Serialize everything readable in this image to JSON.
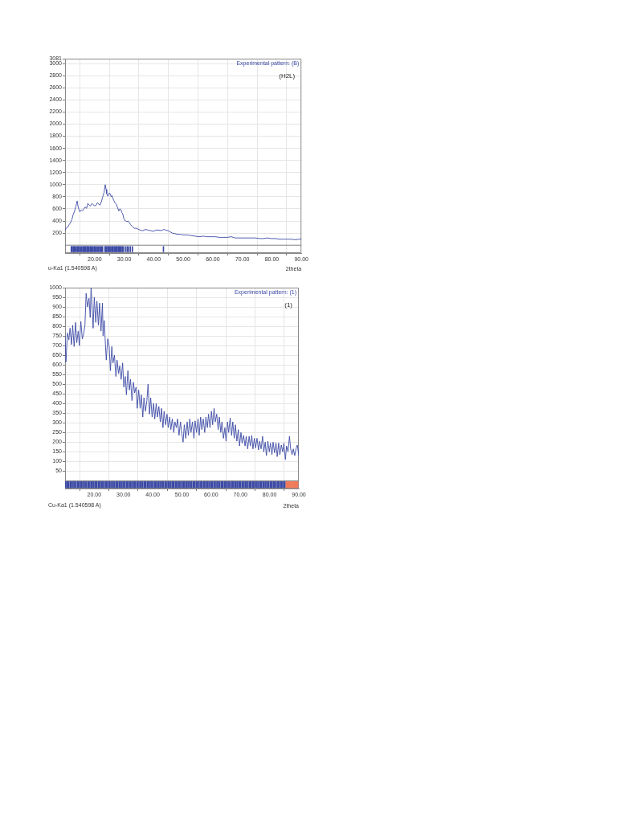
{
  "chart_data": [
    {
      "type": "line",
      "xlabel": "2theta",
      "annotations": [
        "(H2L)",
        "u-Ka1 (1.540598 A)"
      ],
      "xlim": [
        10,
        90
      ],
      "xticks": [
        {
          "value": 20,
          "label": "20.00"
        },
        {
          "value": 30,
          "label": "30.00"
        },
        {
          "value": 40,
          "label": "40.00"
        },
        {
          "value": 50,
          "label": "50.00"
        },
        {
          "value": 60,
          "label": "60.00"
        },
        {
          "value": 70,
          "label": "70.00"
        },
        {
          "value": 80,
          "label": "80.00"
        },
        {
          "value": 90,
          "label": "90.00"
        }
      ],
      "ylim": [
        -130,
        3081
      ],
      "yticks": [
        200,
        400,
        600,
        800,
        1000,
        1200,
        1400,
        1600,
        1800,
        2000,
        2200,
        2400,
        2600,
        2800,
        3000,
        3081
      ],
      "grid": true,
      "legend": "top right",
      "ref_lines": [
        {
          "axis": "y",
          "value": 0,
          "color": "#808080"
        }
      ],
      "series": [
        {
          "name": "Experimental pattern: (B)",
          "color": "#3c4aa5",
          "x": [
            10.0,
            10.5,
            10.9,
            11.4,
            11.8,
            12.3,
            12.7,
            13.2,
            13.7,
            14.1,
            14.4,
            14.7,
            15.0,
            15.5,
            15.9,
            16.4,
            16.8,
            17.3,
            17.7,
            18.2,
            18.6,
            19.1,
            19.5,
            20.0,
            20.5,
            20.9,
            21.4,
            21.8,
            22.3,
            22.7,
            23.2,
            23.6,
            23.9,
            24.1,
            24.5,
            24.9,
            25.3,
            25.6,
            25.9,
            26.2,
            26.5,
            26.9,
            27.3,
            27.7,
            28.0,
            28.2,
            28.6,
            28.9,
            29.2,
            29.5,
            29.9,
            30.2,
            30.6,
            30.9,
            31.3,
            31.8,
            32.2,
            32.5,
            33.0,
            33.4,
            34.0,
            34.5,
            35.4,
            36.3,
            37.2,
            38.1,
            39.0,
            39.9,
            40.8,
            41.8,
            42.6,
            43.3,
            44.1,
            44.9,
            45.6,
            46.3,
            47.2,
            48.1,
            49.0,
            49.9,
            51.2,
            52.6,
            54.0,
            55.4,
            56.8,
            58.1,
            59.5,
            60.8,
            62.2,
            63.5,
            64.9,
            66.2,
            67.6,
            69.0,
            70.3,
            71.7,
            73.0,
            74.4,
            75.8,
            77.1,
            78.5,
            79.8,
            81.2,
            82.6,
            83.9,
            85.3,
            86.6,
            88.0,
            89.0,
            90.0
          ],
          "values": [
            250,
            290,
            300,
            340,
            370,
            420,
            500,
            560,
            650,
            730,
            640,
            590,
            550,
            580,
            570,
            600,
            630,
            610,
            690,
            660,
            650,
            690,
            670,
            650,
            660,
            700,
            680,
            660,
            720,
            790,
            870,
            1000,
            920,
            850,
            810,
            860,
            850,
            800,
            820,
            770,
            740,
            700,
            680,
            630,
            590,
            570,
            600,
            590,
            540,
            520,
            440,
            410,
            400,
            390,
            400,
            370,
            340,
            320,
            300,
            280,
            280,
            270,
            250,
            240,
            260,
            250,
            240,
            230,
            250,
            250,
            240,
            260,
            250,
            240,
            220,
            200,
            190,
            180,
            180,
            170,
            170,
            160,
            150,
            140,
            150,
            140,
            140,
            140,
            130,
            130,
            130,
            140,
            120,
            120,
            120,
            120,
            120,
            120,
            110,
            110,
            120,
            110,
            110,
            100,
            100,
            100,
            100,
            90,
            100,
            100
          ]
        },
        {
          "type": "bar",
          "color": "#3c4aa5",
          "x": [
            12.1,
            12.4,
            12.8,
            13.1,
            13.5,
            13.8,
            14.2,
            14.5,
            14.9,
            15.2,
            15.6,
            16.0,
            16.3,
            16.7,
            17.0,
            17.4,
            17.7,
            18.1,
            18.5,
            18.8,
            19.2,
            19.5,
            19.9,
            20.2,
            20.6,
            20.9,
            21.3,
            21.7,
            22.0,
            22.4,
            22.7,
            23.5,
            23.8,
            24.1,
            24.5,
            24.8,
            25.2,
            25.5,
            25.9,
            26.2,
            26.6,
            26.9,
            27.3,
            27.6,
            28.0,
            28.3,
            28.7,
            29.0,
            29.4,
            29.7,
            30.4,
            31.0,
            31.5,
            32.1,
            32.8,
            43.3
          ],
          "base": [
            -110,
            -110,
            -110,
            -110,
            -110,
            -110,
            -110,
            -110,
            -110,
            -110,
            -110,
            -110,
            -110,
            -110,
            -110,
            -110,
            -110,
            -110,
            -110,
            -110,
            -110,
            -110,
            -110,
            -110,
            -110,
            -110,
            -110,
            -110,
            -110,
            -110,
            -110,
            -110,
            -110,
            -110,
            -110,
            -110,
            -110,
            -110,
            -110,
            -110,
            -110,
            -110,
            -110,
            -110,
            -110,
            -110,
            -110,
            -110,
            -110,
            -110,
            -110,
            -110,
            -110,
            -110,
            -110,
            -110
          ],
          "values": [
            90,
            90,
            90,
            90,
            90,
            90,
            90,
            90,
            90,
            90,
            90,
            90,
            90,
            90,
            90,
            90,
            90,
            90,
            90,
            90,
            90,
            90,
            90,
            90,
            90,
            90,
            90,
            90,
            90,
            90,
            90,
            90,
            90,
            90,
            90,
            90,
            90,
            90,
            90,
            90,
            90,
            90,
            90,
            90,
            90,
            90,
            90,
            90,
            90,
            90,
            90,
            90,
            90,
            90,
            90,
            90
          ]
        }
      ]
    },
    {
      "type": "line",
      "xlabel": "2theta",
      "annotations": [
        "(1)",
        "Cu-Ka1 (1.540598 A)"
      ],
      "xlim": [
        10,
        90
      ],
      "xticks": [
        {
          "value": 20,
          "label": "20.00"
        },
        {
          "value": 30,
          "label": "30.00"
        },
        {
          "value": 40,
          "label": "40.00"
        },
        {
          "value": 50,
          "label": "50.00"
        },
        {
          "value": 60,
          "label": "60.00"
        },
        {
          "value": 70,
          "label": "70.00"
        },
        {
          "value": 80,
          "label": "80.00"
        },
        {
          "value": 90,
          "label": "90.00"
        }
      ],
      "ylim": [
        -40,
        1000
      ],
      "yticks": [
        50,
        100,
        150,
        200,
        250,
        300,
        350,
        400,
        450,
        500,
        550,
        600,
        650,
        700,
        750,
        800,
        850,
        900,
        950,
        1000
      ],
      "grid": true,
      "legend": "top right",
      "ref_lines": [
        {
          "axis": "y",
          "value": 0,
          "color": "#808080"
        }
      ],
      "series": [
        {
          "name": "Experimental pattern: (1)",
          "color": "#3c4aa5",
          "x": [
            10.0,
            10.3,
            10.8,
            11.3,
            11.7,
            12.2,
            12.6,
            13.1,
            13.6,
            14.0,
            14.5,
            14.9,
            15.4,
            15.9,
            16.3,
            16.8,
            17.2,
            17.7,
            18.2,
            18.6,
            18.9,
            19.3,
            19.6,
            20.0,
            20.5,
            20.9,
            21.4,
            21.8,
            22.3,
            22.8,
            23.0,
            23.4,
            23.7,
            24.1,
            24.6,
            25.1,
            25.5,
            26.0,
            26.4,
            26.9,
            27.4,
            27.8,
            28.3,
            28.7,
            29.2,
            29.7,
            30.1,
            30.6,
            31.0,
            31.5,
            32.0,
            32.4,
            32.9,
            33.4,
            33.8,
            34.3,
            34.7,
            35.2,
            35.7,
            36.1,
            36.6,
            37.0,
            37.5,
            38.0,
            38.4,
            38.9,
            39.3,
            39.8,
            40.3,
            40.7,
            41.2,
            41.6,
            42.1,
            42.6,
            43.0,
            43.5,
            43.9,
            44.4,
            44.9,
            45.3,
            45.8,
            46.2,
            46.7,
            47.2,
            47.6,
            48.1,
            48.5,
            49.0,
            49.5,
            49.9,
            50.4,
            50.8,
            51.3,
            51.8,
            52.2,
            52.7,
            53.1,
            53.6,
            54.1,
            54.5,
            55.0,
            55.5,
            55.9,
            56.4,
            56.8,
            57.3,
            57.8,
            58.2,
            58.7,
            59.1,
            59.6,
            60.1,
            60.5,
            61.0,
            61.4,
            61.9,
            62.4,
            62.8,
            63.3,
            63.7,
            64.2,
            64.7,
            65.1,
            65.6,
            66.0,
            66.5,
            67.0,
            67.4,
            67.9,
            68.3,
            68.8,
            69.3,
            69.7,
            70.2,
            70.6,
            71.1,
            71.6,
            72.0,
            72.5,
            73.0,
            73.4,
            73.9,
            74.3,
            74.8,
            75.2,
            75.7,
            76.2,
            76.6,
            77.1,
            77.6,
            78.0,
            78.5,
            78.9,
            79.4,
            79.9,
            80.3,
            80.8,
            81.2,
            81.7,
            82.2,
            82.6,
            83.1,
            83.5,
            84.0,
            84.5,
            84.9,
            85.4,
            85.8,
            86.3,
            86.8,
            87.2,
            87.7,
            88.1,
            88.6,
            89.1,
            89.5,
            90.0
          ],
          "values": [
            750,
            615,
            765,
            730,
            790,
            705,
            805,
            695,
            820,
            715,
            775,
            700,
            825,
            735,
            755,
            805,
            970,
            900,
            945,
            845,
            1000,
            890,
            790,
            950,
            820,
            930,
            805,
            920,
            775,
            920,
            750,
            830,
            740,
            625,
            735,
            695,
            570,
            695,
            610,
            650,
            540,
            625,
            555,
            595,
            525,
            610,
            485,
            540,
            445,
            570,
            470,
            525,
            415,
            510,
            455,
            485,
            375,
            470,
            375,
            445,
            330,
            430,
            360,
            415,
            500,
            345,
            430,
            330,
            400,
            320,
            400,
            330,
            385,
            305,
            375,
            275,
            360,
            290,
            345,
            275,
            330,
            265,
            320,
            250,
            305,
            275,
            320,
            235,
            305,
            250,
            200,
            290,
            220,
            305,
            235,
            320,
            250,
            305,
            220,
            310,
            250,
            320,
            235,
            330,
            265,
            320,
            250,
            330,
            275,
            345,
            275,
            360,
            290,
            375,
            305,
            345,
            265,
            330,
            250,
            305,
            220,
            275,
            205,
            305,
            250,
            325,
            235,
            305,
            220,
            290,
            205,
            265,
            180,
            250,
            195,
            235,
            180,
            230,
            165,
            230,
            180,
            235,
            165,
            220,
            170,
            220,
            160,
            205,
            165,
            230,
            150,
            200,
            130,
            205,
            150,
            195,
            135,
            200,
            145,
            195,
            125,
            195,
            135,
            185,
            150,
            195,
            110,
            180,
            150,
            230,
            165,
            135,
            165,
            130,
            170,
            185,
            130
          ]
        },
        {
          "type": "bar",
          "x": [
            10.2,
            10.6,
            10.9,
            11.3,
            11.8,
            12.1,
            12.5,
            13.0,
            13.3,
            13.7,
            14.2,
            14.5,
            14.9,
            15.4,
            15.7,
            16.1,
            16.6,
            16.9,
            17.3,
            17.8,
            18.1,
            18.5,
            19.0,
            19.3,
            19.7,
            20.2,
            20.5,
            20.9,
            21.4,
            21.7,
            22.1,
            22.6,
            22.9,
            23.3,
            23.8,
            24.1,
            24.5,
            25.0,
            25.3,
            25.7,
            26.2,
            26.5,
            26.9,
            27.4,
            27.7,
            28.1,
            28.6,
            28.9,
            29.3,
            29.8,
            30.1,
            30.5,
            31.0,
            31.3,
            31.7,
            32.2,
            32.5,
            32.9,
            33.4,
            33.7,
            34.1,
            34.6,
            34.9,
            35.3,
            35.8,
            36.1,
            36.5,
            37.0,
            37.3,
            37.7,
            38.2,
            38.5,
            38.9,
            39.4,
            39.7,
            40.1,
            40.6,
            40.9,
            41.3,
            41.8,
            42.1,
            42.5,
            43.0,
            43.3,
            43.7,
            44.2,
            44.5,
            44.9,
            45.4,
            45.7,
            46.1,
            46.6,
            46.9,
            47.3,
            47.8,
            48.1,
            48.5,
            49.0,
            49.3,
            49.7,
            50.2,
            50.5,
            50.9,
            51.4,
            51.7,
            52.1,
            52.6,
            52.9,
            53.3,
            53.8,
            54.1,
            54.5,
            55.0,
            55.3,
            55.7,
            56.2,
            56.5,
            56.9,
            57.4,
            57.7,
            58.1,
            58.6,
            58.9,
            59.3,
            59.8,
            60.1,
            60.5,
            61.0,
            61.3,
            61.7,
            62.2,
            62.5,
            62.9,
            63.4,
            63.7,
            64.1,
            64.6,
            64.9,
            65.3,
            65.8,
            66.1,
            66.5,
            67.0,
            67.3,
            67.7,
            68.2,
            68.5,
            68.9,
            69.4,
            69.7,
            70.1,
            70.6,
            70.9,
            71.3,
            71.8,
            72.1,
            72.5,
            73.0,
            73.3,
            73.7,
            74.2,
            74.5,
            74.9,
            75.4,
            75.7,
            76.1,
            76.6,
            76.9,
            77.3,
            77.8,
            78.1,
            78.5,
            79.0,
            79.3,
            79.7,
            80.2,
            80.5,
            80.9,
            81.4,
            81.7,
            82.1,
            82.6,
            82.9,
            83.3,
            83.8,
            84.1,
            84.5,
            85.0,
            85.3,
            85.7,
            86.0,
            86.3,
            86.6,
            86.9,
            87.2,
            87.5,
            87.8,
            88.1,
            88.4,
            88.7,
            89.0,
            89.3,
            89.6
          ],
          "colors": [
            "#3c4aa5",
            "#3c4aa5",
            "#3c4aa5",
            "#3c4aa5",
            "#3c4aa5",
            "#3c4aa5",
            "#3c4aa5",
            "#3c4aa5",
            "#3c4aa5",
            "#3c4aa5",
            "#3c4aa5",
            "#3c4aa5",
            "#3c4aa5",
            "#3c4aa5",
            "#3c4aa5",
            "#3c4aa5",
            "#3c4aa5",
            "#3c4aa5",
            "#3c4aa5",
            "#3c4aa5",
            "#3c4aa5",
            "#3c4aa5",
            "#3c4aa5",
            "#3c4aa5",
            "#3c4aa5",
            "#3c4aa5",
            "#3c4aa5",
            "#3c4aa5",
            "#3c4aa5",
            "#3c4aa5",
            "#3c4aa5",
            "#3c4aa5",
            "#3c4aa5",
            "#3c4aa5",
            "#3c4aa5",
            "#3c4aa5",
            "#3c4aa5",
            "#3c4aa5",
            "#3c4aa5",
            "#3c4aa5",
            "#3c4aa5",
            "#3c4aa5",
            "#3c4aa5",
            "#3c4aa5",
            "#3c4aa5",
            "#3c4aa5",
            "#3c4aa5",
            "#3c4aa5",
            "#3c4aa5",
            "#3c4aa5",
            "#3c4aa5",
            "#3c4aa5",
            "#3c4aa5",
            "#3c4aa5",
            "#3c4aa5",
            "#3c4aa5",
            "#3c4aa5",
            "#3c4aa5",
            "#3c4aa5",
            "#3c4aa5",
            "#3c4aa5",
            "#3c4aa5",
            "#3c4aa5",
            "#3c4aa5",
            "#3c4aa5",
            "#3c4aa5",
            "#3c4aa5",
            "#3c4aa5",
            "#3c4aa5",
            "#3c4aa5",
            "#3c4aa5",
            "#3c4aa5",
            "#3c4aa5",
            "#3c4aa5",
            "#3c4aa5",
            "#3c4aa5",
            "#3c4aa5",
            "#3c4aa5",
            "#3c4aa5",
            "#3c4aa5",
            "#3c4aa5",
            "#3c4aa5",
            "#3c4aa5",
            "#3c4aa5",
            "#3c4aa5",
            "#3c4aa5",
            "#3c4aa5",
            "#3c4aa5",
            "#3c4aa5",
            "#3c4aa5",
            "#3c4aa5",
            "#3c4aa5",
            "#3c4aa5",
            "#3c4aa5",
            "#3c4aa5",
            "#3c4aa5",
            "#3c4aa5",
            "#3c4aa5",
            "#3c4aa5",
            "#3c4aa5",
            "#3c4aa5",
            "#3c4aa5",
            "#3c4aa5",
            "#3c4aa5",
            "#3c4aa5",
            "#3c4aa5",
            "#3c4aa5",
            "#3c4aa5",
            "#3c4aa5",
            "#3c4aa5",
            "#3c4aa5",
            "#3c4aa5",
            "#3c4aa5",
            "#3c4aa5",
            "#3c4aa5",
            "#3c4aa5",
            "#3c4aa5",
            "#3c4aa5",
            "#3c4aa5",
            "#3c4aa5",
            "#3c4aa5",
            "#3c4aa5",
            "#3c4aa5",
            "#3c4aa5",
            "#3c4aa5",
            "#3c4aa5",
            "#3c4aa5",
            "#3c4aa5",
            "#3c4aa5",
            "#3c4aa5",
            "#3c4aa5",
            "#3c4aa5",
            "#3c4aa5",
            "#3c4aa5",
            "#3c4aa5",
            "#3c4aa5",
            "#3c4aa5",
            "#3c4aa5",
            "#3c4aa5",
            "#3c4aa5",
            "#3c4aa5",
            "#3c4aa5",
            "#3c4aa5",
            "#3c4aa5",
            "#3c4aa5",
            "#3c4aa5",
            "#3c4aa5",
            "#3c4aa5",
            "#3c4aa5",
            "#3c4aa5",
            "#3c4aa5",
            "#3c4aa5",
            "#3c4aa5",
            "#3c4aa5",
            "#3c4aa5",
            "#3c4aa5",
            "#3c4aa5",
            "#3c4aa5",
            "#3c4aa5",
            "#3c4aa5",
            "#3c4aa5",
            "#3c4aa5",
            "#3c4aa5",
            "#3c4aa5",
            "#3c4aa5",
            "#3c4aa5",
            "#3c4aa5",
            "#3c4aa5",
            "#3c4aa5",
            "#3c4aa5",
            "#3c4aa5",
            "#3c4aa5",
            "#3c4aa5",
            "#3c4aa5",
            "#3c4aa5",
            "#3c4aa5",
            "#3c4aa5",
            "#3c4aa5",
            "#3c4aa5",
            "#3c4aa5",
            "#3c4aa5",
            "#3c4aa5",
            "#3c4aa5",
            "#3c4aa5",
            "#3c4aa5",
            "#3c4aa5",
            "#3c4aa5",
            "#3c4aa5",
            "#3c4aa5",
            "#f07a5a",
            "#f07a5a",
            "#f07a5a",
            "#f07a5a",
            "#f07a5a",
            "#f07a5a",
            "#f07a5a",
            "#f07a5a",
            "#f07a5a",
            "#f07a5a",
            "#f07a5a",
            "#f07a5a",
            "#f07a5a",
            "#f07a5a"
          ],
          "base": [
            -36,
            -36,
            -36,
            -36,
            -36,
            -36,
            -36,
            -36,
            -36,
            -36,
            -36,
            -36,
            -36,
            -36,
            -36,
            -36,
            -36,
            -36,
            -36,
            -36,
            -36,
            -36,
            -36,
            -36,
            -36,
            -36,
            -36,
            -36,
            -36,
            -36,
            -36,
            -36,
            -36,
            -36,
            -36,
            -36,
            -36,
            -36,
            -36,
            -36,
            -36,
            -36,
            -36,
            -36,
            -36,
            -36,
            -36,
            -36,
            -36,
            -36,
            -36,
            -36,
            -36,
            -36,
            -36,
            -36,
            -36,
            -36,
            -36,
            -36,
            -36,
            -36,
            -36,
            -36,
            -36,
            -36,
            -36,
            -36,
            -36,
            -36,
            -36,
            -36,
            -36,
            -36,
            -36,
            -36,
            -36,
            -36,
            -36,
            -36,
            -36,
            -36,
            -36,
            -36,
            -36,
            -36,
            -36,
            -36,
            -36,
            -36,
            -36,
            -36,
            -36,
            -36,
            -36,
            -36,
            -36,
            -36,
            -36,
            -36,
            -36,
            -36,
            -36,
            -36,
            -36,
            -36,
            -36,
            -36,
            -36,
            -36,
            -36,
            -36,
            -36,
            -36,
            -36,
            -36,
            -36,
            -36,
            -36,
            -36,
            -36,
            -36,
            -36,
            -36,
            -36,
            -36,
            -36,
            -36,
            -36,
            -36,
            -36,
            -36,
            -36,
            -36,
            -36,
            -36,
            -36,
            -36,
            -36,
            -36,
            -36,
            -36,
            -36,
            -36,
            -36,
            -36,
            -36,
            -36,
            -36,
            -36,
            -36,
            -36,
            -36,
            -36,
            -36,
            -36,
            -36,
            -36,
            -36,
            -36,
            -36,
            -36,
            -36,
            -36,
            -36,
            -36,
            -36,
            -36,
            -36,
            -36,
            -36,
            -36,
            -36,
            -36,
            -36,
            -36,
            -36,
            -36,
            -36,
            -36,
            -36,
            -36,
            -36,
            -36,
            -36,
            -36,
            -36,
            -36,
            -36,
            -36,
            -36,
            -36,
            -36,
            -36,
            -36,
            -36,
            -36,
            -36,
            -36,
            -36,
            -36,
            -36,
            -36
          ],
          "values": [
            32,
            32,
            32,
            32,
            32,
            32,
            32,
            32,
            32,
            32,
            32,
            32,
            32,
            32,
            32,
            32,
            32,
            32,
            32,
            32,
            32,
            32,
            32,
            32,
            32,
            32,
            32,
            32,
            32,
            32,
            32,
            32,
            32,
            32,
            32,
            32,
            32,
            32,
            32,
            32,
            32,
            32,
            32,
            32,
            32,
            32,
            32,
            32,
            32,
            32,
            32,
            32,
            32,
            32,
            32,
            32,
            32,
            32,
            32,
            32,
            32,
            32,
            32,
            32,
            32,
            32,
            32,
            32,
            32,
            32,
            32,
            32,
            32,
            32,
            32,
            32,
            32,
            32,
            32,
            32,
            32,
            32,
            32,
            32,
            32,
            32,
            32,
            32,
            32,
            32,
            32,
            32,
            32,
            32,
            32,
            32,
            32,
            32,
            32,
            32,
            32,
            32,
            32,
            32,
            32,
            32,
            32,
            32,
            32,
            32,
            32,
            32,
            32,
            32,
            32,
            32,
            32,
            32,
            32,
            32,
            32,
            32,
            32,
            32,
            32,
            32,
            32,
            32,
            32,
            32,
            32,
            32,
            32,
            32,
            32,
            32,
            32,
            32,
            32,
            32,
            32,
            32,
            32,
            32,
            32,
            32,
            32,
            32,
            32,
            32,
            32,
            32,
            32,
            32,
            32,
            32,
            32,
            32,
            32,
            32,
            32,
            32,
            32,
            32,
            32,
            32,
            32,
            32,
            32,
            32,
            32,
            32,
            32,
            32,
            32,
            32,
            32,
            32,
            32,
            32,
            32,
            32,
            32,
            32,
            32,
            32,
            32,
            32,
            32,
            32,
            32,
            32,
            32,
            32,
            32,
            32,
            32,
            32,
            32,
            32,
            32,
            32,
            32
          ]
        }
      ]
    }
  ]
}
